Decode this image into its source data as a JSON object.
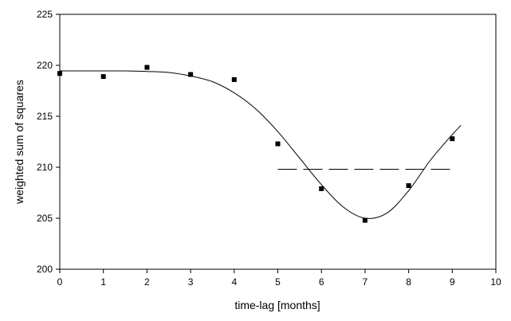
{
  "chart_data": {
    "type": "scatter",
    "xlabel": "time-lag [months]",
    "ylabel": "weighted sum of squares",
    "xlim": [
      0,
      10
    ],
    "ylim": [
      200,
      225
    ],
    "xticks": [
      0,
      1,
      2,
      3,
      4,
      5,
      6,
      7,
      8,
      9,
      10
    ],
    "yticks": [
      200,
      205,
      210,
      215,
      220,
      225
    ],
    "grid": false,
    "legend": "none",
    "points": [
      {
        "x": 0,
        "y": 219.2
      },
      {
        "x": 1,
        "y": 218.9
      },
      {
        "x": 2,
        "y": 219.8
      },
      {
        "x": 3,
        "y": 219.1
      },
      {
        "x": 4,
        "y": 218.6
      },
      {
        "x": 5,
        "y": 212.3
      },
      {
        "x": 6,
        "y": 207.9
      },
      {
        "x": 7,
        "y": 204.8
      },
      {
        "x": 8,
        "y": 208.2
      },
      {
        "x": 9,
        "y": 212.8
      }
    ],
    "fit_curve": [
      {
        "x": 0,
        "y": 219.45
      },
      {
        "x": 0.5,
        "y": 219.45
      },
      {
        "x": 1,
        "y": 219.45
      },
      {
        "x": 1.5,
        "y": 219.45
      },
      {
        "x": 2,
        "y": 219.4
      },
      {
        "x": 2.5,
        "y": 219.3
      },
      {
        "x": 3,
        "y": 218.95
      },
      {
        "x": 3.5,
        "y": 218.4
      },
      {
        "x": 4,
        "y": 217.3
      },
      {
        "x": 4.5,
        "y": 215.7
      },
      {
        "x": 5,
        "y": 213.5
      },
      {
        "x": 5.5,
        "y": 210.9
      },
      {
        "x": 6,
        "y": 208.3
      },
      {
        "x": 6.5,
        "y": 206.1
      },
      {
        "x": 7,
        "y": 205.0
      },
      {
        "x": 7.5,
        "y": 205.5
      },
      {
        "x": 8,
        "y": 207.7
      },
      {
        "x": 8.5,
        "y": 210.7
      },
      {
        "x": 9,
        "y": 213.2
      },
      {
        "x": 9.2,
        "y": 214.1
      }
    ],
    "threshold": {
      "x_start": 5,
      "x_end": 9,
      "y": 209.8,
      "style": "dashed"
    }
  }
}
